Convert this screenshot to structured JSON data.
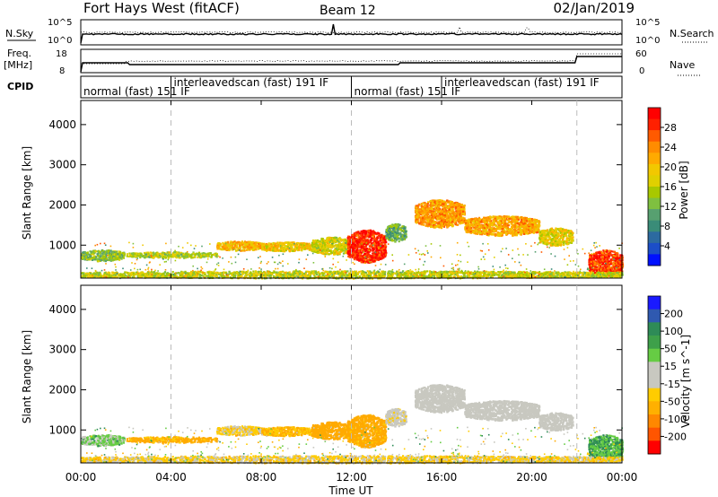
{
  "header": {
    "station": "Fort Hays West (fitACF)",
    "beam": "Beam 12",
    "date": "02/Jan/2019"
  },
  "top_panels": {
    "nsky_label": "N.Sky",
    "nsky_ticks": [
      "10^5",
      "10^0"
    ],
    "nsearch_label": "N.Search",
    "nsearch_ticks": [
      "10^5",
      "10^0"
    ],
    "freq_label_line1": "Freq.",
    "freq_label_line2": "[MHz]",
    "freq_ticks": [
      "18",
      "8"
    ],
    "nave_label": "Nave",
    "nave_ticks": [
      "60",
      "0"
    ],
    "cpid_label": "CPID",
    "cpid_segments": [
      {
        "label": "normal (fast) 151 IF",
        "start_h": 0,
        "end_h": 4
      },
      {
        "label": "interleavedscan (fast) 191 IF",
        "start_h": 4,
        "end_h": 12
      },
      {
        "label": "normal (fast) 151 IF",
        "start_h": 12,
        "end_h": 16
      },
      {
        "label": "interleavedscan (fast) 191 IF",
        "start_h": 16,
        "end_h": 22
      }
    ]
  },
  "power_colorbar": {
    "title": "Power [dB]",
    "ticks": [
      "28",
      "24",
      "20",
      "16",
      "12",
      "8",
      "4"
    ],
    "colors": [
      "#ff0000",
      "#ff2000",
      "#ff5a00",
      "#ff8c00",
      "#ffaa00",
      "#f2c800",
      "#e0d000",
      "#a8c800",
      "#7fc040",
      "#57a070",
      "#3a8c78",
      "#2c6aa0",
      "#1c4ec8",
      "#0010ff"
    ]
  },
  "velocity_colorbar": {
    "title": "Velocity [m s^-1]",
    "ticks": [
      "200",
      "100",
      "50",
      "15",
      "-15",
      "-50",
      "-100",
      "-200"
    ],
    "colors": [
      "#1a1aff",
      "#2f59b0",
      "#2e8b57",
      "#3ea04a",
      "#66cc44",
      "#c8c8c0",
      "#c8c8c0",
      "#ffcc00",
      "#ffb000",
      "#ff8800",
      "#ff5500",
      "#ff0000"
    ]
  },
  "chart_data": [
    {
      "type": "heatmap",
      "name": "power",
      "ylabel": "Slant Range [km]",
      "yticks": [
        1000,
        2000,
        3000,
        4000
      ],
      "ylim": [
        180,
        4600
      ],
      "xlim": [
        0,
        24
      ],
      "features": [
        {
          "t0": 0.0,
          "t1": 1.9,
          "r0": 620,
          "r1": 900,
          "level": 12
        },
        {
          "t0": 2.0,
          "t1": 6.0,
          "r0": 700,
          "r1": 850,
          "level": 14
        },
        {
          "t0": 6.0,
          "t1": 8.0,
          "r0": 880,
          "r1": 1120,
          "level": 20
        },
        {
          "t0": 8.0,
          "t1": 10.2,
          "r0": 860,
          "r1": 1100,
          "level": 18
        },
        {
          "t0": 10.2,
          "t1": 12.0,
          "r0": 780,
          "r1": 1220,
          "level": 16
        },
        {
          "t0": 11.8,
          "t1": 13.5,
          "r0": 580,
          "r1": 1400,
          "level": 28
        },
        {
          "t0": 13.5,
          "t1": 14.4,
          "r0": 1100,
          "r1": 1550,
          "level": 10
        },
        {
          "t0": 14.8,
          "t1": 17.0,
          "r0": 1450,
          "r1": 2150,
          "level": 22
        },
        {
          "t0": 17.0,
          "t1": 20.3,
          "r0": 1250,
          "r1": 1750,
          "level": 21
        },
        {
          "t0": 20.3,
          "t1": 21.8,
          "r0": 1000,
          "r1": 1450,
          "level": 17
        },
        {
          "t0": 22.5,
          "t1": 24.0,
          "r0": 250,
          "r1": 900,
          "level": 27
        },
        {
          "t0": 0.0,
          "t1": 24.0,
          "r0": 190,
          "r1": 380,
          "level": 15
        }
      ]
    },
    {
      "type": "heatmap",
      "name": "velocity",
      "ylabel": "Slant Range [km]",
      "xlabel": "Time UT",
      "xticks": [
        "00:00",
        "04:00",
        "08:00",
        "12:00",
        "16:00",
        "20:00",
        "00:00"
      ],
      "yticks": [
        1000,
        2000,
        3000,
        4000
      ],
      "ylim": [
        180,
        4600
      ],
      "xlim": [
        0,
        24
      ],
      "features": [
        {
          "t0": 0.0,
          "t1": 1.9,
          "r0": 620,
          "r1": 900,
          "vel": 20
        },
        {
          "t0": 2.0,
          "t1": 6.0,
          "r0": 700,
          "r1": 850,
          "vel": -40
        },
        {
          "t0": 6.0,
          "t1": 8.0,
          "r0": 880,
          "r1": 1120,
          "vel": -20
        },
        {
          "t0": 8.0,
          "t1": 10.2,
          "r0": 860,
          "r1": 1100,
          "vel": -35
        },
        {
          "t0": 10.2,
          "t1": 12.0,
          "r0": 780,
          "r1": 1220,
          "vel": -60
        },
        {
          "t0": 11.8,
          "t1": 13.5,
          "r0": 580,
          "r1": 1400,
          "vel": -45
        },
        {
          "t0": 13.5,
          "t1": 14.4,
          "r0": 1100,
          "r1": 1550,
          "vel": -5
        },
        {
          "t0": 14.8,
          "t1": 17.0,
          "r0": 1450,
          "r1": 2150,
          "vel": 0
        },
        {
          "t0": 17.0,
          "t1": 20.3,
          "r0": 1250,
          "r1": 1750,
          "vel": 0
        },
        {
          "t0": 20.3,
          "t1": 21.8,
          "r0": 1000,
          "r1": 1450,
          "vel": 0
        },
        {
          "t0": 22.5,
          "t1": 24.0,
          "r0": 250,
          "r1": 900,
          "vel": 30
        },
        {
          "t0": 0.0,
          "t1": 24.0,
          "r0": 190,
          "r1": 380,
          "vel": -20
        }
      ]
    }
  ]
}
